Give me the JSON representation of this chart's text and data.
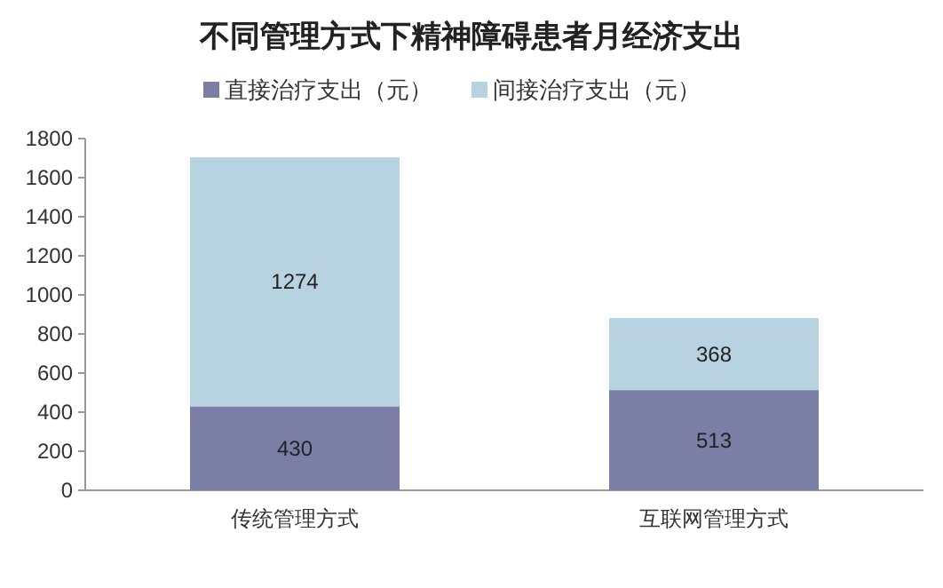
{
  "chart_data": {
    "type": "bar",
    "title": "不同管理方式下精神障碍患者月经济支出",
    "categories": [
      "传统管理方式",
      "互联网管理方式"
    ],
    "stacked": true,
    "series": [
      {
        "name": "直接治疗支出（元）",
        "color": "#7b7fa6",
        "values": [
          430,
          513
        ]
      },
      {
        "name": "间接治疗支出（元）",
        "color": "#b7d3e1",
        "values": [
          1274,
          368
        ]
      }
    ],
    "ylim": [
      0,
      1800
    ],
    "yticks": [
      0,
      200,
      400,
      600,
      800,
      1000,
      1200,
      1400,
      1600,
      1800
    ],
    "grid": false,
    "legend": "top",
    "data_labels": true
  }
}
